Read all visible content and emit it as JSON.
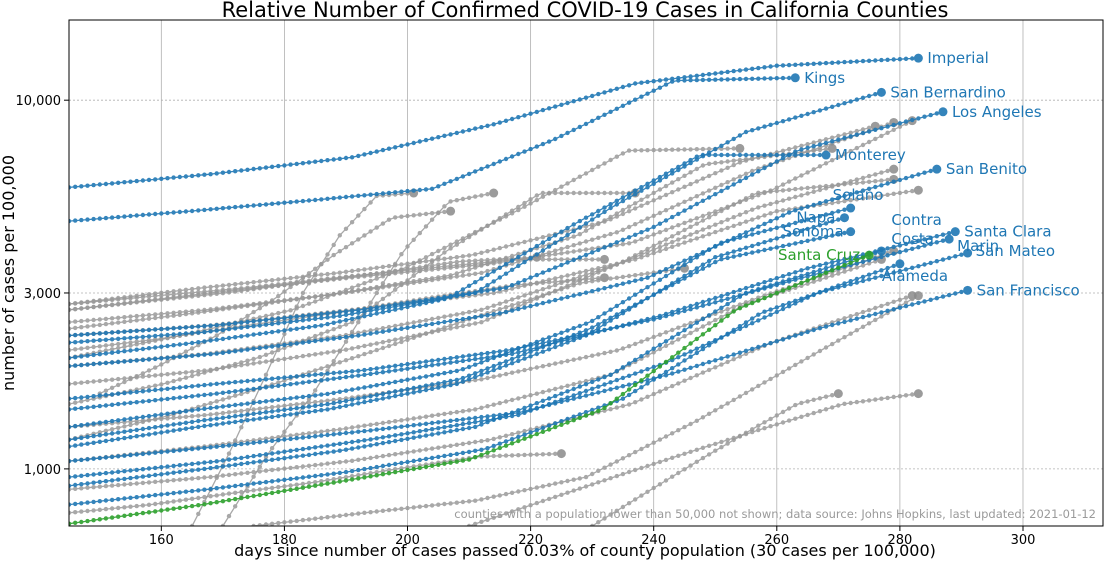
{
  "chart_data": {
    "type": "line",
    "title": "Relative Number of Confirmed COVID-19 Cases in California Counties",
    "xlabel": "days since number of cases passed 0.03% of county population (30 cases per 100,000)",
    "ylabel": "number of cases per 100,000",
    "xlim": [
      145,
      313
    ],
    "ylim": [
      700,
      16500
    ],
    "yscale": "log",
    "xticks": [
      160,
      180,
      200,
      220,
      240,
      260,
      280,
      300
    ],
    "xtick_labels": [
      "160",
      "180",
      "200",
      "220",
      "240",
      "260",
      "280",
      "300"
    ],
    "yticks": [
      1000,
      3000,
      10000
    ],
    "ytick_labels": [
      "1,000",
      "3,000",
      "10,000"
    ],
    "grid": true,
    "note": "counties with a population lower than 50,000 not shown; data source: Johns Hopkins, last updated: 2021-01-12",
    "colors": {
      "highlight": "#1f77b4",
      "focus": "#2ca02c",
      "other": "#999999"
    },
    "series": [
      {
        "name": "Imperial",
        "label_lines": [
          "Imperial"
        ],
        "group": "highlight",
        "x_start": 145,
        "x_end": 283,
        "values": [
          5800,
          6300,
          7000,
          8600,
          11100,
          12400,
          13000
        ]
      },
      {
        "name": "Kings",
        "label_lines": [
          "Kings"
        ],
        "group": "highlight",
        "x_start": 145,
        "x_end": 263,
        "values": [
          4700,
          5000,
          5350,
          5750,
          7800,
          11300,
          11500
        ]
      },
      {
        "name": "San Bernardino",
        "label_lines": [
          "San Bernardino"
        ],
        "group": "highlight",
        "x_start": 145,
        "x_end": 277,
        "values": [
          2200,
          2350,
          2600,
          3000,
          5100,
          8200,
          10500
        ]
      },
      {
        "name": "Los Angeles",
        "label_lines": [
          "Los Angeles"
        ],
        "group": "highlight",
        "x_start": 145,
        "x_end": 287,
        "values": [
          2300,
          2450,
          2700,
          3100,
          4500,
          7300,
          9300
        ]
      },
      {
        "name": "Monterey",
        "label_lines": [
          "Monterey"
        ],
        "group": "highlight",
        "x_start": 145,
        "x_end": 268,
        "values": [
          2000,
          2200,
          2450,
          2900,
          4600,
          7100,
          7100
        ]
      },
      {
        "name": "San Benito",
        "label_lines": [
          "San Benito"
        ],
        "group": "highlight",
        "x_start": 145,
        "x_end": 286,
        "values": [
          1900,
          2050,
          2300,
          2650,
          3300,
          5000,
          6500
        ]
      },
      {
        "name": "Solano",
        "label_lines": [
          "Solano"
        ],
        "group": "highlight",
        "x_start": 145,
        "x_end": 272,
        "values": [
          1300,
          1450,
          1600,
          1850,
          2500,
          4100,
          5100
        ]
      },
      {
        "name": "Napa",
        "label_lines": [
          "Napa"
        ],
        "group": "highlight",
        "x_start": 145,
        "x_end": 271,
        "values": [
          1150,
          1300,
          1450,
          1700,
          2300,
          3750,
          4800
        ]
      },
      {
        "name": "Sonoma",
        "label_lines": [
          "Sonoma"
        ],
        "group": "highlight",
        "x_start": 145,
        "x_end": 272,
        "values": [
          1200,
          1350,
          1500,
          1750,
          2400,
          3700,
          4400
        ]
      },
      {
        "name": "Contra Costa",
        "label_lines": [
          "Contra",
          "Costa"
        ],
        "group": "highlight",
        "x_start": 145,
        "x_end": 277,
        "values": [
          900,
          1000,
          1120,
          1300,
          1800,
          3000,
          3900
        ]
      },
      {
        "name": "Santa Clara",
        "label_lines": [
          "Santa Clara"
        ],
        "group": "highlight",
        "x_start": 145,
        "x_end": 289,
        "values": [
          1450,
          1600,
          1800,
          2050,
          2600,
          3500,
          4400
        ]
      },
      {
        "name": "Marin",
        "label_lines": [
          "Marin"
        ],
        "group": "highlight",
        "x_start": 145,
        "x_end": 288,
        "values": [
          1550,
          1700,
          1850,
          2100,
          2550,
          3300,
          4200
        ]
      },
      {
        "name": "San Mateo",
        "label_lines": [
          "San Mateo"
        ],
        "group": "highlight",
        "x_start": 145,
        "x_end": 291,
        "values": [
          950,
          1050,
          1200,
          1400,
          1950,
          3000,
          3850
        ]
      },
      {
        "name": "Alameda",
        "label_lines": [
          "Alameda"
        ],
        "group": "highlight",
        "x_start": 145,
        "x_end": 280,
        "values": [
          800,
          880,
          980,
          1130,
          1550,
          2650,
          3600
        ]
      },
      {
        "name": "San Francisco",
        "label_lines": [
          "San Francisco"
        ],
        "group": "highlight",
        "x_start": 145,
        "x_end": 291,
        "values": [
          1050,
          1150,
          1270,
          1420,
          1800,
          2400,
          3050
        ]
      },
      {
        "name": "Santa Cruz",
        "label_lines": [
          "Santa Cruz"
        ],
        "group": "focus",
        "x_start": 145,
        "x_end": 275,
        "values": [
          710,
          800,
          920,
          1060,
          1450,
          2700,
          3800
        ]
      },
      {
        "name": "",
        "group": "other",
        "x_start": 145,
        "x_end": 276,
        "values": [
          2800,
          3100,
          3400,
          3800,
          4700,
          6800,
          8500
        ]
      },
      {
        "name": "",
        "group": "other",
        "x_start": 145,
        "x_end": 279,
        "values": [
          2500,
          2700,
          3000,
          3400,
          4400,
          6500,
          8700
        ]
      },
      {
        "name": "",
        "group": "other",
        "x_start": 145,
        "x_end": 282,
        "values": [
          2700,
          3000,
          3300,
          3600,
          4100,
          5700,
          8800
        ]
      },
      {
        "name": "",
        "group": "other",
        "x_start": 145,
        "x_end": 269,
        "values": [
          2400,
          2650,
          2950,
          3350,
          4300,
          6700,
          7400
        ]
      },
      {
        "name": "",
        "group": "other",
        "x_start": 145,
        "x_end": 279,
        "values": [
          1700,
          1850,
          2100,
          2500,
          3600,
          5600,
          6100
        ]
      },
      {
        "name": "",
        "group": "other",
        "x_start": 145,
        "x_end": 283,
        "values": [
          2300,
          2450,
          2700,
          3000,
          3700,
          5000,
          5700
        ]
      },
      {
        "name": "",
        "group": "other",
        "x_start": 145,
        "x_end": 279,
        "values": [
          1900,
          2050,
          2300,
          2700,
          3600,
          5100,
          6500
        ]
      },
      {
        "name": "",
        "group": "other",
        "x_start": 145,
        "x_end": 254,
        "values": [
          2000,
          2300,
          2700,
          3500,
          5000,
          7300,
          7400
        ]
      },
      {
        "name": "",
        "group": "other",
        "x_start": 145,
        "x_end": 237,
        "values": [
          1500,
          1700,
          2000,
          2500,
          3900,
          5600,
          5600
        ]
      },
      {
        "name": "",
        "group": "other",
        "x_start": 165,
        "x_end": 201,
        "values": [
          700,
          1100,
          1800,
          3000,
          4300,
          5500,
          5600
        ]
      },
      {
        "name": "",
        "group": "other",
        "x_start": 170,
        "x_end": 214,
        "values": [
          700,
          1100,
          1600,
          2500,
          3900,
          5300,
          5600
        ]
      },
      {
        "name": "",
        "group": "other",
        "x_start": 150,
        "x_end": 207,
        "values": [
          1600,
          1900,
          2300,
          2900,
          3800,
          4800,
          5000
        ]
      },
      {
        "name": "",
        "group": "other",
        "x_start": 145,
        "x_end": 221,
        "values": [
          2700,
          2850,
          3000,
          3200,
          3400,
          3650,
          3750
        ]
      },
      {
        "name": "",
        "group": "other",
        "x_start": 145,
        "x_end": 232,
        "values": [
          2800,
          2950,
          3100,
          3300,
          3500,
          3700,
          3700
        ]
      },
      {
        "name": "",
        "group": "other",
        "x_start": 145,
        "x_end": 232,
        "values": [
          2100,
          2250,
          2450,
          2650,
          2900,
          3150,
          3300
        ]
      },
      {
        "name": "",
        "group": "other",
        "x_start": 145,
        "x_end": 245,
        "values": [
          1200,
          1400,
          1700,
          2100,
          2600,
          3200,
          3500
        ]
      },
      {
        "name": "",
        "group": "other",
        "x_start": 145,
        "x_end": 279,
        "values": [
          1300,
          1400,
          1550,
          1750,
          2100,
          2900,
          3900
        ]
      },
      {
        "name": "",
        "group": "other",
        "x_start": 145,
        "x_end": 277,
        "values": [
          1050,
          1150,
          1280,
          1450,
          1800,
          2800,
          3700
        ]
      },
      {
        "name": "",
        "group": "other",
        "x_start": 145,
        "x_end": 282,
        "values": [
          880,
          950,
          1050,
          1200,
          1500,
          2200,
          2950
        ]
      },
      {
        "name": "",
        "group": "other",
        "x_start": 175,
        "x_end": 283,
        "values": [
          700,
          760,
          820,
          950,
          1350,
          2000,
          2950
        ]
      },
      {
        "name": "",
        "group": "other",
        "x_start": 210,
        "x_end": 283,
        "values": [
          700,
          820,
          960,
          1120,
          1300,
          1500,
          1600
        ]
      },
      {
        "name": "",
        "group": "other",
        "x_start": 230,
        "x_end": 270,
        "values": [
          700,
          820,
          960,
          1120,
          1300,
          1500,
          1600
        ]
      },
      {
        "name": "",
        "group": "other",
        "x_start": 145,
        "x_end": 225,
        "values": [
          760,
          800,
          860,
          920,
          1000,
          1080,
          1100
        ]
      }
    ]
  }
}
